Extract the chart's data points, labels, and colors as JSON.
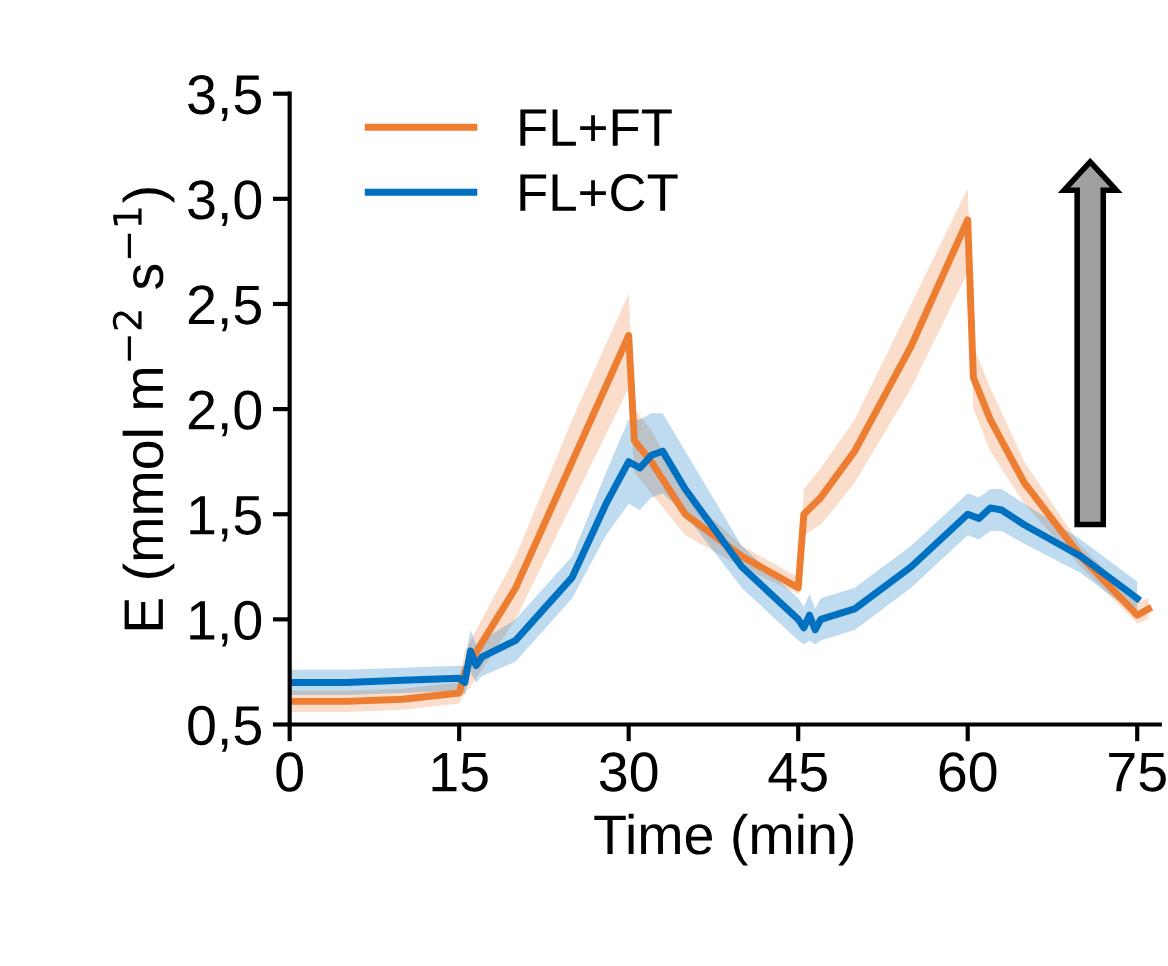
{
  "chart_data": {
    "type": "line",
    "xlabel": "Time (min)",
    "ylabel": "E (mmol m$^{−2}$ s$^{−1}$)",
    "xlim": [
      0,
      77
    ],
    "ylim": [
      0.5,
      3.5
    ],
    "xticks": [
      0,
      15,
      30,
      45,
      60,
      75
    ],
    "yticks": [
      {
        "value": 0.5,
        "label": "0,5"
      },
      {
        "value": 1.0,
        "label": "1,0"
      },
      {
        "value": 1.5,
        "label": "1,5"
      },
      {
        "value": 2.0,
        "label": "2,0"
      },
      {
        "value": 2.5,
        "label": "2,5"
      },
      {
        "value": 3.0,
        "label": "3,0"
      },
      {
        "value": 3.5,
        "label": "3,5"
      }
    ],
    "grid": false,
    "legend": "top left",
    "marker": "none",
    "line_style": "solid",
    "series": [
      {
        "name": "FL+FT",
        "color": "#ed7d31",
        "x": [
          0,
          5,
          10,
          15,
          15.5,
          16,
          20,
          25,
          30,
          30.5,
          32,
          35,
          40,
          45,
          45.5,
          47,
          50,
          55,
          60,
          60.5,
          62,
          65,
          70,
          75,
          76
        ],
        "values": [
          0.61,
          0.61,
          0.62,
          0.65,
          0.75,
          0.8,
          1.15,
          1.75,
          2.35,
          1.85,
          1.75,
          1.5,
          1.3,
          1.15,
          1.5,
          1.58,
          1.8,
          2.3,
          2.9,
          2.15,
          1.95,
          1.65,
          1.3,
          1.02,
          1.05
        ],
        "lower": [
          0.56,
          0.56,
          0.57,
          0.6,
          0.65,
          0.68,
          1.0,
          1.55,
          2.1,
          1.7,
          1.6,
          1.4,
          1.25,
          1.12,
          1.4,
          1.45,
          1.65,
          2.1,
          2.65,
          2.0,
          1.8,
          1.55,
          1.25,
          0.98,
          1.0
        ],
        "upper": [
          0.66,
          0.66,
          0.67,
          0.7,
          0.85,
          0.9,
          1.3,
          1.95,
          2.55,
          2.0,
          1.9,
          1.6,
          1.35,
          1.2,
          1.62,
          1.72,
          1.95,
          2.5,
          3.05,
          2.3,
          2.1,
          1.75,
          1.35,
          1.08,
          1.1
        ]
      },
      {
        "name": "FL+CT",
        "color": "#0070c0",
        "x": [
          0,
          5,
          10,
          15,
          15.5,
          16,
          16.5,
          17,
          20,
          25,
          28,
          30,
          31,
          32,
          33,
          35,
          40,
          45,
          45.5,
          46,
          46.5,
          47,
          50,
          55,
          60,
          61,
          62,
          63,
          65,
          70,
          75
        ],
        "values": [
          0.7,
          0.7,
          0.71,
          0.72,
          0.7,
          0.85,
          0.78,
          0.82,
          0.9,
          1.2,
          1.55,
          1.75,
          1.72,
          1.78,
          1.8,
          1.62,
          1.25,
          1.0,
          0.96,
          1.02,
          0.95,
          1.0,
          1.05,
          1.25,
          1.5,
          1.48,
          1.53,
          1.52,
          1.45,
          1.3,
          1.1
        ],
        "lower": [
          0.64,
          0.64,
          0.65,
          0.66,
          0.64,
          0.75,
          0.7,
          0.73,
          0.8,
          1.1,
          1.4,
          1.55,
          1.52,
          1.58,
          1.6,
          1.5,
          1.15,
          0.9,
          0.88,
          0.9,
          0.88,
          0.9,
          0.95,
          1.15,
          1.4,
          1.38,
          1.42,
          1.42,
          1.36,
          1.22,
          1.02
        ],
        "upper": [
          0.76,
          0.76,
          0.77,
          0.78,
          0.78,
          0.95,
          0.88,
          0.9,
          1.0,
          1.3,
          1.7,
          1.95,
          1.95,
          1.98,
          1.98,
          1.8,
          1.35,
          1.1,
          1.06,
          1.12,
          1.05,
          1.1,
          1.15,
          1.35,
          1.6,
          1.58,
          1.62,
          1.62,
          1.55,
          1.38,
          1.18
        ]
      }
    ]
  }
}
